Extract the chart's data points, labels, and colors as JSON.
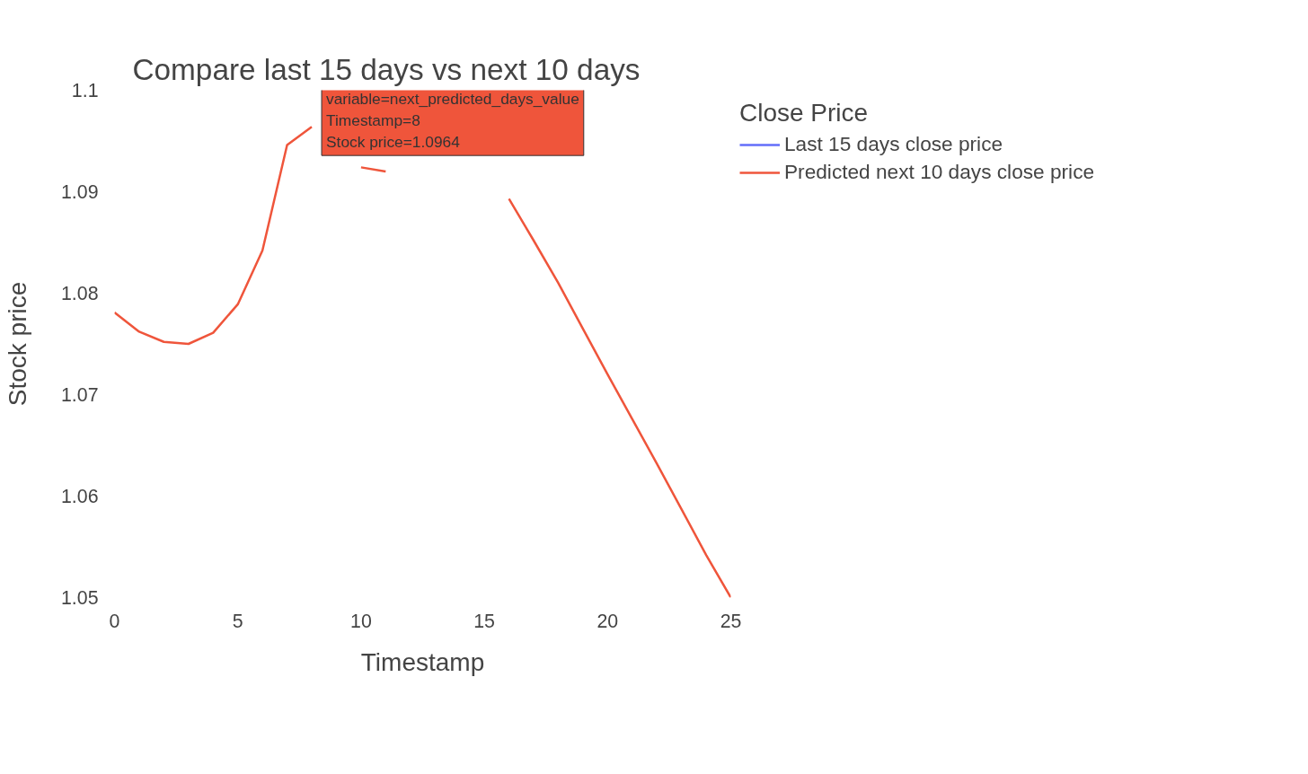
{
  "chart_data": {
    "type": "line",
    "title": "Compare last 15 days vs next 10 days",
    "xlabel": "Timestamp",
    "ylabel": "Stock price",
    "legend_title": "Close Price",
    "x": [
      0,
      1,
      2,
      3,
      4,
      5,
      6,
      7,
      8,
      9,
      10,
      11,
      12,
      13,
      14,
      15,
      16,
      17,
      18,
      19,
      20,
      21,
      22,
      23,
      24,
      25
    ],
    "series": [
      {
        "name": "Last 15 days close price",
        "color": "#636efa",
        "values": [
          null,
          null,
          null,
          null,
          null,
          null,
          null,
          null,
          null,
          null,
          null,
          null,
          null,
          null,
          null,
          null,
          null,
          null,
          null,
          null,
          null,
          null,
          null,
          null,
          null,
          null
        ]
      },
      {
        "name": "Predicted next 10 days close price",
        "color": "#ef553b",
        "values": [
          1.0781,
          1.0762,
          1.0752,
          1.075,
          1.0761,
          1.0789,
          1.0842,
          1.0946,
          1.0964,
          null,
          1.0924,
          1.092,
          null,
          null,
          null,
          null,
          1.0893,
          1.0852,
          1.081,
          1.0765,
          1.072,
          1.0676,
          1.0632,
          1.0587,
          1.0542,
          1.05
        ]
      }
    ],
    "annotations": [
      {
        "text": "variable=next_predicted_days_value\nTimestamp=8\nStock price=1.0964",
        "x": 8,
        "y": 1.0964
      }
    ],
    "xlim": [
      0,
      25
    ],
    "ylim": [
      1.05,
      1.1
    ],
    "xticks": [
      0,
      5,
      10,
      15,
      20,
      25
    ],
    "yticks": [
      1.05,
      1.06,
      1.07,
      1.08,
      1.09,
      1.1
    ],
    "grid": false,
    "legend": "top right",
    "line_style": "solid",
    "marker": "none"
  }
}
